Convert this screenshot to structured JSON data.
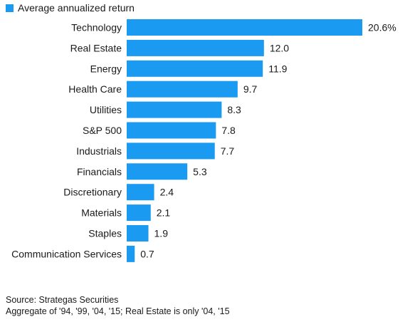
{
  "chart_data": {
    "type": "bar",
    "orientation": "horizontal",
    "series": [
      {
        "name": "Average annualized return",
        "color": "#1a9af0",
        "values": [
          20.6,
          12.0,
          11.9,
          9.7,
          8.3,
          7.8,
          7.7,
          5.3,
          2.4,
          2.1,
          1.9,
          0.7
        ]
      }
    ],
    "categories": [
      "Technology",
      "Real Estate",
      "Energy",
      "Health Care",
      "Utilities",
      "S&P 500",
      "Industrials",
      "Financials",
      "Discretionary",
      "Materials",
      "Staples",
      "Communication Services"
    ],
    "value_labels": [
      "20.6%",
      "12.0",
      "11.9",
      "9.7",
      "8.3",
      "7.8",
      "7.7",
      "5.3",
      "2.4",
      "2.1",
      "1.9",
      "0.7"
    ],
    "legend": "top-left",
    "grid": false,
    "xlim": [
      0,
      20.6
    ]
  },
  "footnotes": {
    "source": "Source: Strategas Securities",
    "note": "Aggregate of '94, '99, '04, '15; Real Estate is only '04, '15"
  }
}
